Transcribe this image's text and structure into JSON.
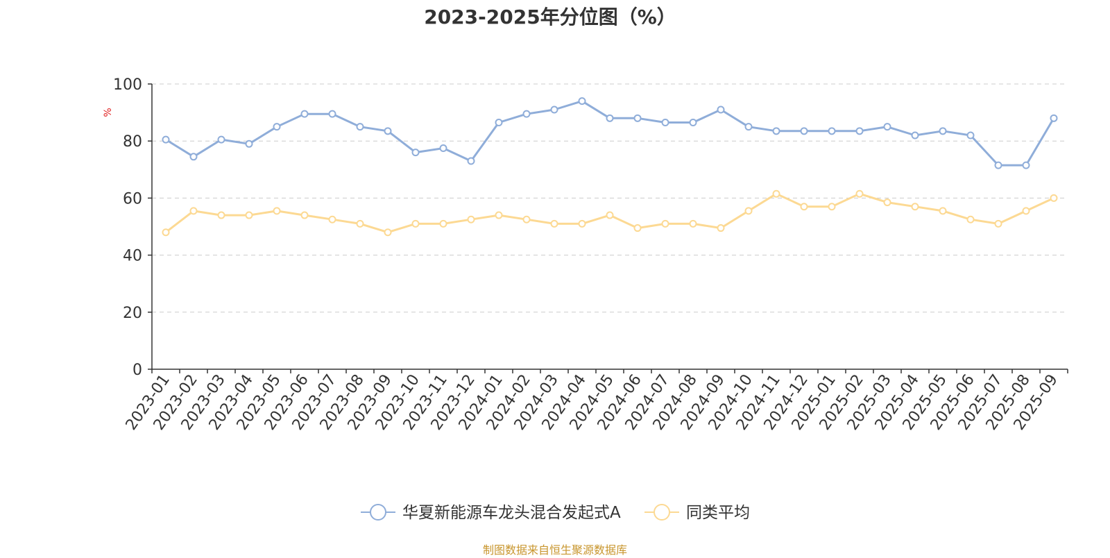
{
  "colors": {
    "series_primary": "#8fadd9",
    "series_average": "#fcd993",
    "axis": "#333333",
    "grid": "#cccccc",
    "ylabel": "#e02020",
    "source": "#c8962e",
    "text": "#333333"
  },
  "source_note": "制图数据来自恒生聚源数据库",
  "chart_data": {
    "type": "line",
    "title": "2023-2025年分位图（%）",
    "xlabel": "",
    "ylabel": "%",
    "ylim": [
      0,
      100
    ],
    "yticks": [
      "0",
      "20",
      "40",
      "60",
      "80",
      "100"
    ],
    "grid": true,
    "legend_position": "bottom-center",
    "categories": [
      "2023-01",
      "2023-02",
      "2023-03",
      "2023-04",
      "2023-05",
      "2023-06",
      "2023-07",
      "2023-08",
      "2023-09",
      "2023-10",
      "2023-11",
      "2023-12",
      "2024-01",
      "2024-02",
      "2024-03",
      "2024-04",
      "2024-05",
      "2024-06",
      "2024-07",
      "2024-08",
      "2024-09",
      "2024-10",
      "2024-11",
      "2024-12",
      "2025-01",
      "2025-02",
      "2025-03",
      "2025-04",
      "2025-05",
      "2025-06",
      "2025-07",
      "2025-08",
      "2025-09"
    ],
    "series": [
      {
        "name": "华夏新能源车龙头混合发起式A",
        "color": "#8fadd9",
        "values": [
          80.5,
          74.5,
          80.5,
          79,
          85,
          89.5,
          89.5,
          85,
          83.5,
          76,
          77.5,
          73,
          86.5,
          89.5,
          91,
          94,
          88,
          88,
          86.5,
          86.5,
          91,
          85,
          83.5,
          83.5,
          83.5,
          83.5,
          85,
          82,
          83.5,
          82,
          71.5,
          71.5,
          88
        ]
      },
      {
        "name": "同类平均",
        "color": "#fcd993",
        "values": [
          48,
          55.5,
          54,
          54,
          55.5,
          54,
          52.5,
          51,
          48,
          51,
          51,
          52.5,
          54,
          52.5,
          51,
          51,
          54,
          49.5,
          51,
          51,
          49.5,
          55.5,
          61.5,
          57,
          57,
          61.5,
          58.5,
          57,
          55.5,
          52.5,
          51,
          55.5,
          60
        ]
      }
    ]
  }
}
